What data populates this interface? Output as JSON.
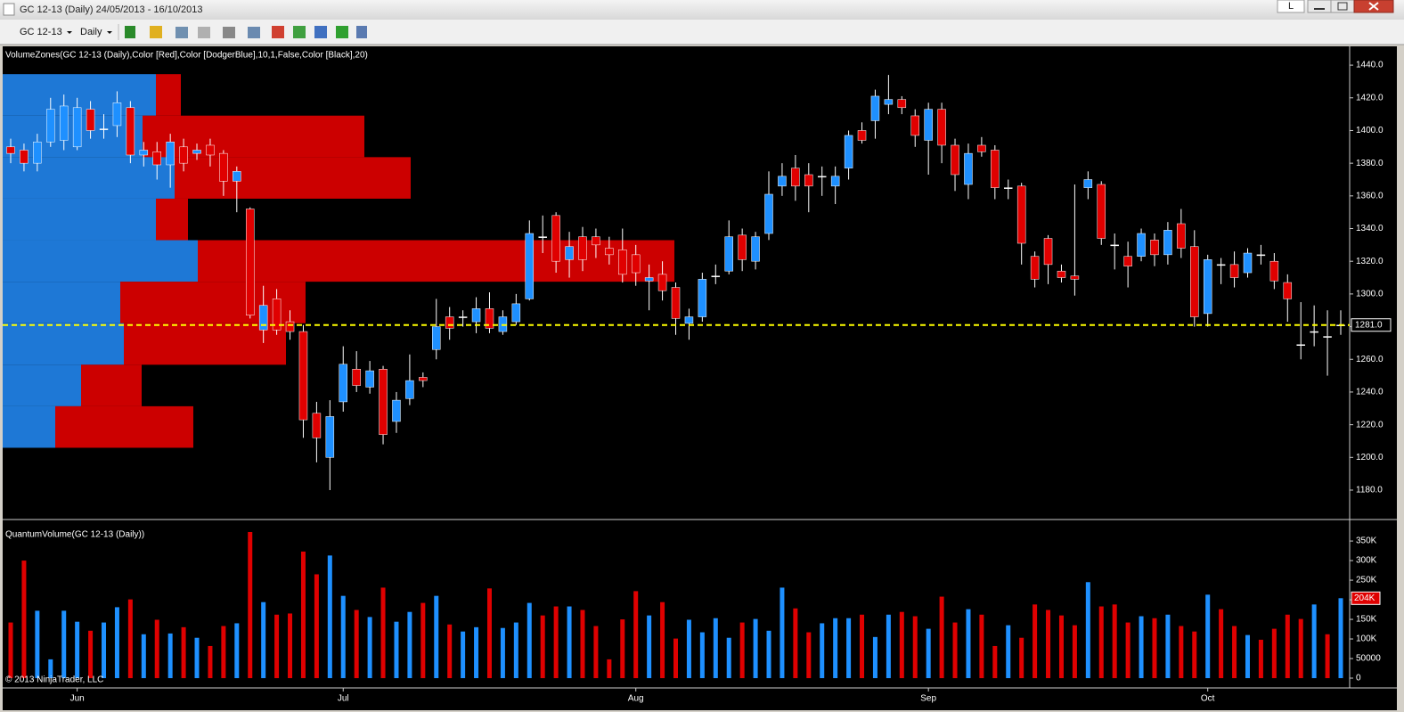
{
  "window": {
    "title": "GC 12-13 (Daily)  24/05/2013 - 16/10/2013",
    "tab_label": "L",
    "toolbar_instrument": "GC 12-13",
    "toolbar_interval": "Daily"
  },
  "chart_data": [
    {
      "type": "candlestick",
      "label": "VolumeZones(GC 12-13 (Daily),Color [Red],Color [DodgerBlue],10,1,False,Color [Black],20)",
      "open": [
        1390,
        1388,
        1380,
        1393,
        1394,
        1390,
        1413,
        1401,
        1403,
        1414,
        1385,
        1387,
        1379,
        1390,
        1386,
        1391,
        1386,
        1369,
        1352,
        1278,
        1297,
        1283,
        1277,
        1227,
        1200,
        1234,
        1254,
        1243,
        1254,
        1222,
        1236,
        1249,
        1266,
        1286,
        1286,
        1283,
        1291,
        1277,
        1283,
        1297,
        1335,
        1348,
        1321,
        1335,
        1335,
        1328,
        1327,
        1324,
        1308,
        1312,
        1304,
        1282,
        1286,
        1311,
        1314,
        1336,
        1320,
        1337,
        1366,
        1377,
        1373,
        1372,
        1366,
        1377,
        1400,
        1406,
        1416,
        1419,
        1409,
        1394,
        1413,
        1391,
        1367,
        1391,
        1388,
        1365,
        1366,
        1323,
        1334,
        1314,
        1311,
        1365,
        1367,
        1330,
        1323,
        1323,
        1333,
        1324,
        1343,
        1329,
        1288,
        1318,
        1318,
        1313,
        1324,
        1320,
        1307,
        1269,
        1277,
        1274,
        1281
      ],
      "high": [
        1395,
        1392,
        1398,
        1420,
        1422,
        1420,
        1418,
        1410,
        1424,
        1418,
        1393,
        1393,
        1398,
        1395,
        1392,
        1395,
        1388,
        1378,
        1353,
        1305,
        1303,
        1290,
        1281,
        1234,
        1235,
        1268,
        1265,
        1259,
        1256,
        1240,
        1263,
        1252,
        1297,
        1292,
        1290,
        1298,
        1301,
        1290,
        1300,
        1345,
        1348,
        1350,
        1338,
        1341,
        1340,
        1335,
        1340,
        1330,
        1318,
        1320,
        1307,
        1291,
        1313,
        1318,
        1345,
        1340,
        1338,
        1375,
        1380,
        1385,
        1380,
        1378,
        1378,
        1400,
        1405,
        1425,
        1434,
        1421,
        1413,
        1417,
        1417,
        1395,
        1392,
        1396,
        1391,
        1370,
        1368,
        1326,
        1336,
        1318,
        1367,
        1375,
        1369,
        1337,
        1332,
        1340,
        1337,
        1344,
        1352,
        1339,
        1324,
        1322,
        1326,
        1328,
        1330,
        1325,
        1312,
        1295,
        1293,
        1290,
        1290
      ],
      "low": [
        1380,
        1375,
        1375,
        1390,
        1388,
        1388,
        1395,
        1395,
        1396,
        1380,
        1378,
        1370,
        1365,
        1375,
        1382,
        1378,
        1360,
        1350,
        1285,
        1270,
        1275,
        1272,
        1212,
        1197,
        1180,
        1228,
        1240,
        1239,
        1208,
        1215,
        1232,
        1243,
        1260,
        1272,
        1280,
        1276,
        1276,
        1275,
        1281,
        1296,
        1325,
        1313,
        1310,
        1314,
        1322,
        1318,
        1307,
        1305,
        1290,
        1296,
        1275,
        1272,
        1283,
        1306,
        1312,
        1314,
        1315,
        1333,
        1360,
        1357,
        1350,
        1360,
        1355,
        1370,
        1392,
        1395,
        1410,
        1410,
        1390,
        1373,
        1380,
        1363,
        1358,
        1384,
        1358,
        1358,
        1318,
        1304,
        1306,
        1307,
        1299,
        1358,
        1330,
        1315,
        1304,
        1320,
        1317,
        1318,
        1322,
        1280,
        1280,
        1306,
        1304,
        1310,
        1318,
        1303,
        1283,
        1260,
        1268,
        1250,
        1275
      ],
      "close": [
        1386,
        1380,
        1393,
        1413,
        1415,
        1414,
        1400,
        1401,
        1417,
        1385,
        1388,
        1379,
        1393,
        1380,
        1388,
        1385,
        1369,
        1375,
        1287,
        1293,
        1278,
        1277,
        1223,
        1212,
        1225,
        1257,
        1244,
        1253,
        1214,
        1235,
        1247,
        1247,
        1280,
        1279,
        1286,
        1291,
        1279,
        1286,
        1294,
        1337,
        1335,
        1320,
        1329,
        1321,
        1330,
        1324,
        1312,
        1313,
        1310,
        1302,
        1285,
        1286,
        1309,
        1311,
        1335,
        1321,
        1335,
        1361,
        1372,
        1366,
        1366,
        1372,
        1372,
        1397,
        1394,
        1421,
        1419,
        1414,
        1397,
        1413,
        1391,
        1373,
        1386,
        1387,
        1365,
        1365,
        1331,
        1309,
        1318,
        1310,
        1309,
        1370,
        1334,
        1330,
        1317,
        1337,
        1324,
        1339,
        1328,
        1286,
        1321,
        1318,
        1310,
        1325,
        1324,
        1308,
        1297,
        1269,
        1277,
        1274,
        1281
      ],
      "up_color": "#1e90ff",
      "down_color": "#e00000",
      "doji_color": "#ffffff",
      "ylim": [
        1162,
        1451.5
      ],
      "yticks": [
        {
          "value": 1440,
          "label": "1440.0"
        },
        {
          "value": 1420,
          "label": "1420.0"
        },
        {
          "value": 1400,
          "label": "1400.0"
        },
        {
          "value": 1380,
          "label": "1380.0"
        },
        {
          "value": 1360,
          "label": "1360.0"
        },
        {
          "value": 1340,
          "label": "1340.0"
        },
        {
          "value": 1320,
          "label": "1320.0"
        },
        {
          "value": 1300,
          "label": "1300.0"
        },
        {
          "value": 1280,
          "label": "1280.0"
        },
        {
          "value": 1260,
          "label": "1260.0"
        },
        {
          "value": 1240,
          "label": "1240.0"
        },
        {
          "value": 1220,
          "label": "1220.0"
        },
        {
          "value": 1200,
          "label": "1200.0"
        },
        {
          "value": 1180,
          "label": "1180.0"
        }
      ],
      "current_price": {
        "value": 1281,
        "label": "1281.0"
      },
      "current_price_color": "#ffff00",
      "volume_zones": {
        "edges": [
          1434.5,
          1409.1,
          1383.7,
          1358.3,
          1332.9,
          1307.5,
          1282.1,
          1256.7,
          1231.3,
          1205.9
        ],
        "up": [
          172,
          157,
          193,
          172,
          219,
          132,
          136,
          88,
          59
        ],
        "down": [
          28,
          249,
          265,
          36,
          535,
          208,
          182,
          68,
          155
        ],
        "up_color": "#1e78d6",
        "down_color": "#cc0000"
      }
    },
    {
      "type": "volume",
      "label": "QuantumVolume(GC 12-13 (Daily))",
      "categories": [
        null,
        null,
        null,
        null,
        null,
        "Jun",
        null,
        null,
        null,
        null,
        null,
        null,
        null,
        null,
        null,
        null,
        null,
        null,
        null,
        null,
        null,
        null,
        null,
        null,
        null,
        "Jul",
        null,
        null,
        null,
        null,
        null,
        null,
        null,
        null,
        null,
        null,
        null,
        null,
        null,
        null,
        null,
        null,
        null,
        null,
        null,
        null,
        null,
        "Aug",
        null,
        null,
        null,
        null,
        null,
        null,
        null,
        null,
        null,
        null,
        null,
        null,
        null,
        null,
        null,
        null,
        null,
        null,
        null,
        null,
        null,
        "Sep",
        null,
        null,
        null,
        null,
        null,
        null,
        null,
        null,
        null,
        null,
        null,
        null,
        null,
        null,
        null,
        null,
        null,
        null,
        null,
        null,
        "Oct",
        null,
        null,
        null,
        null,
        null,
        null,
        null,
        null,
        null,
        null
      ],
      "values": [
        142000,
        300000,
        172000,
        48000,
        172000,
        144000,
        121000,
        142000,
        181000,
        201000,
        112000,
        149000,
        114000,
        130000,
        103000,
        82000,
        133000,
        140000,
        373000,
        194000,
        162000,
        165000,
        323000,
        265000,
        313000,
        210000,
        174000,
        156000,
        231000,
        144000,
        169000,
        192000,
        210000,
        137000,
        119000,
        130000,
        229000,
        128000,
        142000,
        192000,
        160000,
        183000,
        183000,
        174000,
        133000,
        48000,
        150000,
        222000,
        160000,
        194000,
        101000,
        149000,
        117000,
        153000,
        103000,
        142000,
        151000,
        121000,
        231000,
        178000,
        117000,
        140000,
        153000,
        153000,
        162000,
        105000,
        162000,
        169000,
        158000,
        126000,
        208000,
        142000,
        176000,
        162000,
        82000,
        135000,
        103000,
        188000,
        174000,
        160000,
        135000,
        245000,
        183000,
        188000,
        142000,
        158000,
        153000,
        162000,
        133000,
        119000,
        213000,
        176000,
        133000,
        110000,
        98000,
        126000,
        162000,
        151000,
        188000,
        112000,
        204000
      ],
      "ylim": [
        -25000,
        398000
      ],
      "yticks": [
        {
          "value": 350000,
          "label": "350K"
        },
        {
          "value": 300000,
          "label": "300K"
        },
        {
          "value": 250000,
          "label": "250K"
        },
        {
          "value": 200000,
          "label": "200K"
        },
        {
          "value": 150000,
          "label": "150K"
        },
        {
          "value": 100000,
          "label": "100K"
        },
        50000,
        0
      ],
      "current_value": {
        "value": 204000,
        "label": "204K"
      }
    }
  ],
  "copyright": "© 2013 NinjaTrader, LLC"
}
